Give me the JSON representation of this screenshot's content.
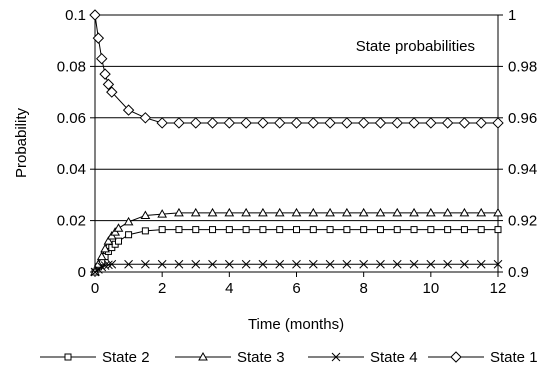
{
  "chart_data": {
    "type": "line",
    "annotation": "State probabilities",
    "xlabel": "Time (months)",
    "ylabel": "Probability",
    "xlim": [
      0,
      12
    ],
    "ylim": [
      0,
      0.1
    ],
    "y2lim": [
      0.9,
      1
    ],
    "grid": "horizontal",
    "legend_position": "bottom",
    "x_ticks": [
      0,
      2,
      4,
      6,
      8,
      10,
      12
    ],
    "x_tick_labels": [
      "0",
      "2",
      "4",
      "6",
      "8",
      "10",
      "12"
    ],
    "y_ticks": [
      0,
      0.02,
      0.04,
      0.06,
      0.08,
      0.1
    ],
    "y_tick_labels": [
      "0",
      "0.02",
      "0.04",
      "0.06",
      "0.08",
      "0.1"
    ],
    "y2_ticks": [
      0.9,
      0.92,
      0.94,
      0.96,
      0.98,
      1
    ],
    "y2_tick_labels": [
      "0.9",
      "0.92",
      "0.94",
      "0.96",
      "0.98",
      "1"
    ],
    "line_color": "#000000",
    "series": [
      {
        "name": "State 2",
        "axis": "left",
        "marker": "square",
        "x": [
          0,
          0.1,
          0.2,
          0.3,
          0.4,
          0.5,
          0.6,
          0.7,
          1,
          1.5,
          2,
          2.5,
          3,
          3.5,
          4,
          4.5,
          5,
          5.5,
          6,
          6.5,
          7,
          7.5,
          8,
          8.5,
          9,
          9.5,
          10,
          10.5,
          11,
          11.5,
          12
        ],
        "y": [
          0,
          0.002,
          0.004,
          0.006,
          0.008,
          0.0095,
          0.0108,
          0.012,
          0.0145,
          0.016,
          0.0165,
          0.0165,
          0.0165,
          0.0165,
          0.0165,
          0.0165,
          0.0165,
          0.0165,
          0.0165,
          0.0165,
          0.0165,
          0.0165,
          0.0165,
          0.0165,
          0.0165,
          0.0165,
          0.0165,
          0.0165,
          0.0165,
          0.0165,
          0.0165
        ]
      },
      {
        "name": "State 3",
        "axis": "left",
        "marker": "triangle",
        "x": [
          0,
          0.1,
          0.2,
          0.3,
          0.4,
          0.5,
          0.6,
          0.7,
          1,
          1.5,
          2,
          2.5,
          3,
          3.5,
          4,
          4.5,
          5,
          5.5,
          6,
          6.5,
          7,
          7.5,
          8,
          8.5,
          9,
          9.5,
          10,
          10.5,
          11,
          11.5,
          12
        ],
        "y": [
          0,
          0.003,
          0.006,
          0.009,
          0.012,
          0.014,
          0.0155,
          0.017,
          0.0195,
          0.022,
          0.0225,
          0.023,
          0.023,
          0.023,
          0.023,
          0.023,
          0.023,
          0.023,
          0.023,
          0.023,
          0.023,
          0.023,
          0.023,
          0.023,
          0.023,
          0.023,
          0.023,
          0.023,
          0.023,
          0.023,
          0.023
        ]
      },
      {
        "name": "State 4",
        "axis": "left",
        "marker": "x",
        "x": [
          0,
          0.1,
          0.2,
          0.3,
          0.4,
          0.5,
          1,
          1.5,
          2,
          2.5,
          3,
          3.5,
          4,
          4.5,
          5,
          5.5,
          6,
          6.5,
          7,
          7.5,
          8,
          8.5,
          9,
          9.5,
          10,
          10.5,
          11,
          11.5,
          12
        ],
        "y": [
          0,
          0.001,
          0.002,
          0.0025,
          0.0028,
          0.003,
          0.003,
          0.003,
          0.003,
          0.003,
          0.003,
          0.003,
          0.003,
          0.003,
          0.003,
          0.003,
          0.003,
          0.003,
          0.003,
          0.003,
          0.003,
          0.003,
          0.003,
          0.003,
          0.003,
          0.003,
          0.003,
          0.003,
          0.003
        ]
      },
      {
        "name": "State 1",
        "axis": "right",
        "marker": "diamond",
        "x": [
          0,
          0.1,
          0.2,
          0.3,
          0.4,
          0.5,
          1,
          1.5,
          2,
          2.5,
          3,
          3.5,
          4,
          4.5,
          5,
          5.5,
          6,
          6.5,
          7,
          7.5,
          8,
          8.5,
          9,
          9.5,
          10,
          10.5,
          11,
          11.5,
          12
        ],
        "y": [
          1,
          0.991,
          0.983,
          0.977,
          0.973,
          0.97,
          0.963,
          0.96,
          0.958,
          0.958,
          0.958,
          0.958,
          0.958,
          0.958,
          0.958,
          0.958,
          0.958,
          0.958,
          0.958,
          0.958,
          0.958,
          0.958,
          0.958,
          0.958,
          0.958,
          0.958,
          0.958,
          0.958,
          0.958
        ]
      }
    ],
    "legend": [
      {
        "label": "State 2",
        "marker": "square"
      },
      {
        "label": "State 3",
        "marker": "triangle"
      },
      {
        "label": "State 4",
        "marker": "x"
      },
      {
        "label": "State 1",
        "marker": "diamond"
      }
    ]
  }
}
